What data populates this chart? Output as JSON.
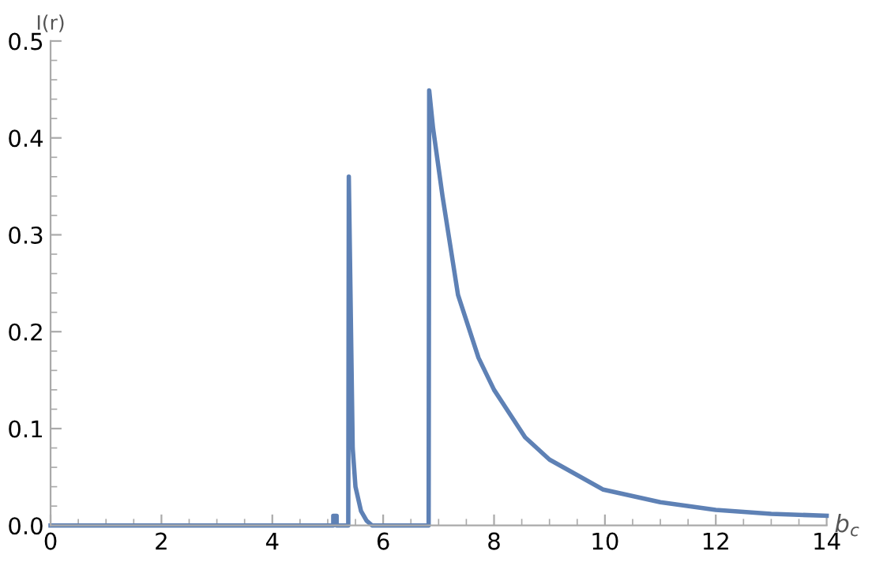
{
  "chart_data": {
    "type": "line",
    "xlabel": "b$_{c}$",
    "ylabel": "I(r)",
    "x": [
      0,
      5.1,
      5.1,
      5.16,
      5.16,
      5.37,
      5.38,
      5.42,
      5.45,
      5.5,
      5.6,
      5.7,
      5.8,
      6.82,
      6.83,
      6.9,
      7.07,
      7.35,
      7.72,
      8,
      8.56,
      9,
      9.97,
      11,
      12,
      13,
      14
    ],
    "series": [
      {
        "color": "#5e81b5",
        "values": [
          0,
          0,
          0.01,
          0.01,
          0,
          0,
          0.36,
          0.2,
          0.08,
          0.04,
          0.015,
          0.005,
          0,
          0,
          0.449,
          0.41,
          0.34,
          0.238,
          0.173,
          0.14,
          0.091,
          0.068,
          0.037,
          0.024,
          0.016,
          0.012,
          0.01
        ]
      }
    ],
    "xlim": [
      0,
      14
    ],
    "ylim": [
      0,
      0.5
    ],
    "xticks": [
      0,
      2,
      4,
      6,
      8,
      10,
      12,
      14
    ],
    "yticks": [
      {
        "value": 0,
        "label": "0.0"
      },
      0.1,
      0.2,
      0.3,
      0.4,
      0.5
    ],
    "grid": false,
    "legend": false,
    "marker": "none",
    "line_style": "solid"
  }
}
